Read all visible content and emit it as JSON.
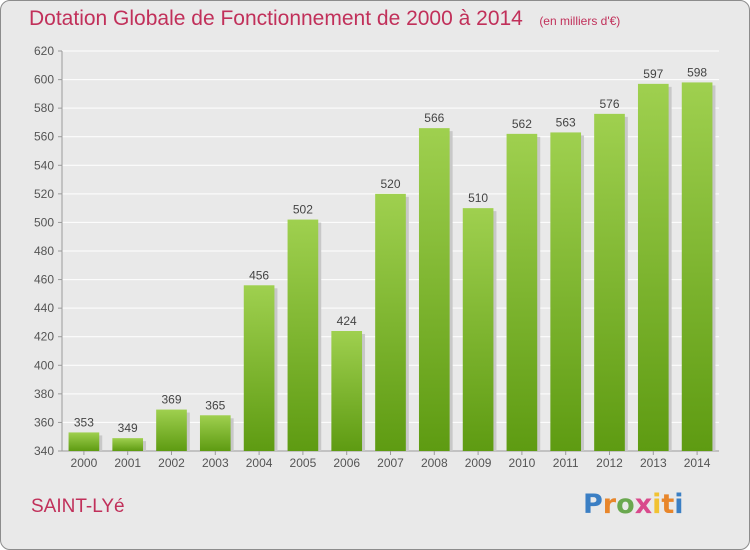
{
  "title": "Dotation Globale de Fonctionnement de 2000 à 2014",
  "subtitle": "(en milliers d'€)",
  "commune": "SAINT-LYé",
  "logo": {
    "text": "Proxiti",
    "letter_colors": [
      "#3b7fc4",
      "#e8862b",
      "#6aa84f",
      "#d94a8c",
      "#f1c232",
      "#e8862b",
      "#3b7fc4"
    ]
  },
  "colors": {
    "title": "#c1305a",
    "bar_light": "#9fd04f",
    "bar_dark": "#5e9b12",
    "background": "#e9e9e9",
    "grid": "#ffffff"
  },
  "chart_data": {
    "type": "bar",
    "categories": [
      "2000",
      "2001",
      "2002",
      "2003",
      "2004",
      "2005",
      "2006",
      "2007",
      "2008",
      "2009",
      "2010",
      "2011",
      "2012",
      "2013",
      "2014"
    ],
    "values": [
      353,
      349,
      369,
      365,
      456,
      502,
      424,
      520,
      566,
      510,
      562,
      563,
      576,
      597,
      598
    ],
    "ylim": [
      340,
      620
    ],
    "yticks": [
      340,
      360,
      380,
      400,
      420,
      440,
      460,
      480,
      500,
      520,
      540,
      560,
      580,
      600,
      620
    ],
    "grid": true,
    "data_labels": true
  }
}
